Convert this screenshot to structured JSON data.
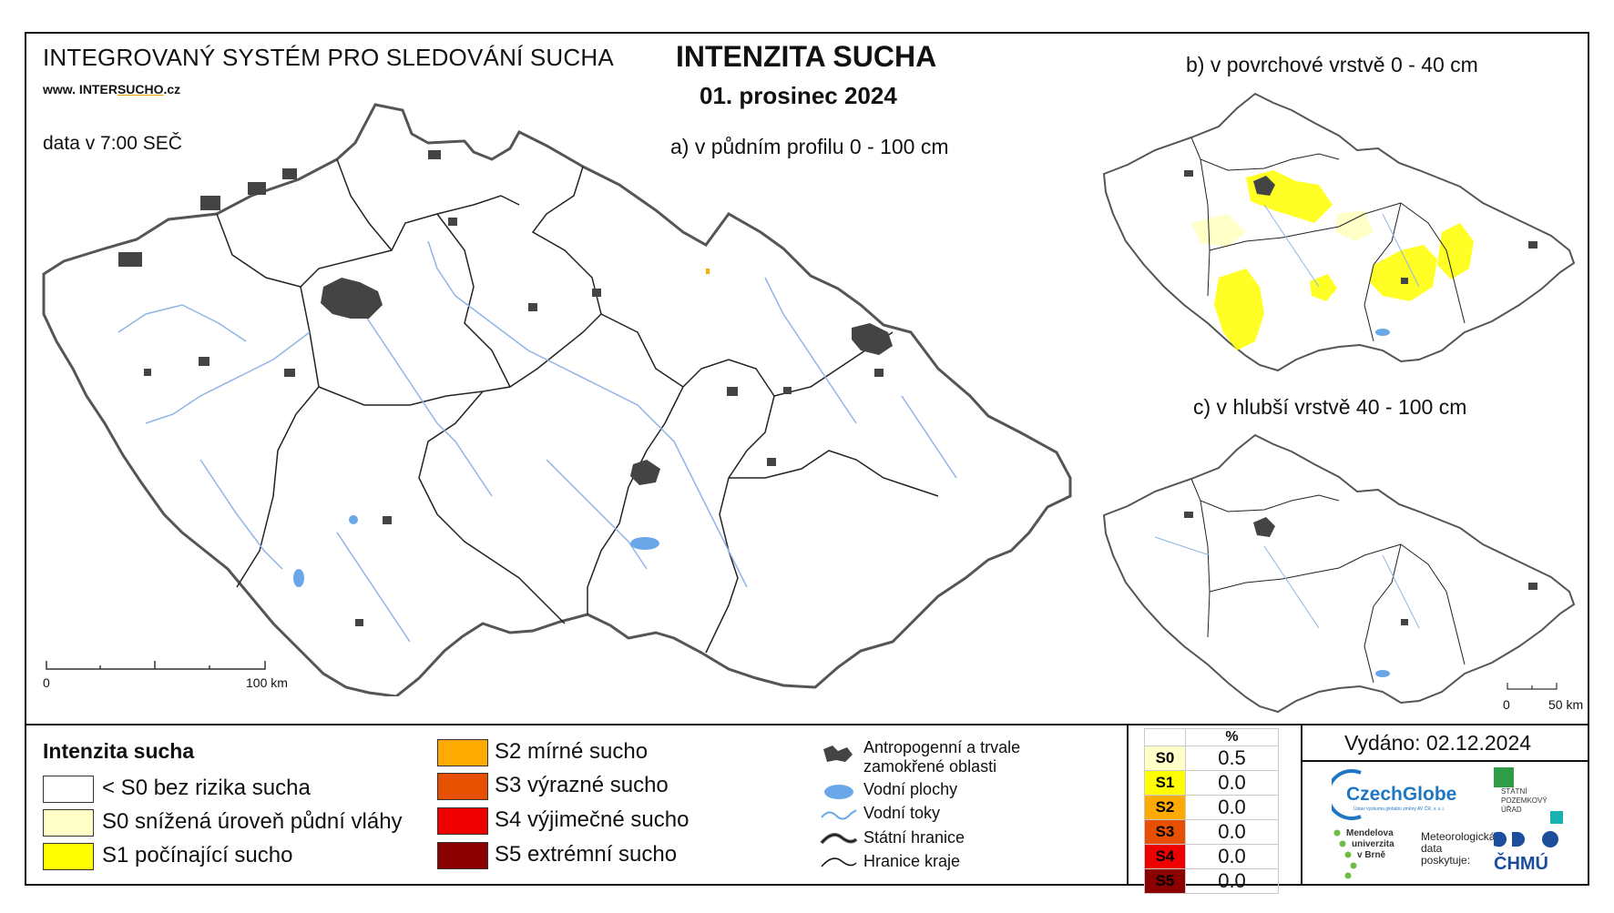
{
  "header": {
    "system_title": "INTEGROVANÝ SYSTÉM PRO SLEDOVÁNÍ SUCHA",
    "url_prefix": "www. INTER",
    "url_mid": "SUCHO",
    "url_suffix": ".cz",
    "data_time": "data v 7:00 SEČ",
    "main_title": "INTENZITA SUCHA",
    "date": "01. prosinec 2024"
  },
  "maps": {
    "a_label": "a) v půdním profilu 0 - 100 cm",
    "b_label": "b) v povrchové vrstvě 0 - 40 cm",
    "c_label": "c) v hlubší vrstvě 40 - 100 cm",
    "scale_main": {
      "start": "0",
      "end": "100 km"
    },
    "scale_small": {
      "start": "0",
      "end": "50 km"
    }
  },
  "legend": {
    "title": "Intenzita sucha",
    "classes": [
      {
        "label": "< S0 bez rizika sucha",
        "color": "#ffffff"
      },
      {
        "label": "S0 snížená úroveň půdní vláhy",
        "color": "#ffffc8"
      },
      {
        "label": "S1 počínající sucho",
        "color": "#ffff00"
      },
      {
        "label": "S2 mírné sucho",
        "color": "#ffaa00"
      },
      {
        "label": "S3 výrazné sucho",
        "color": "#e65000"
      },
      {
        "label": "S4 výjimečné sucho",
        "color": "#ee0000"
      },
      {
        "label": "S5 extrémní sucho",
        "color": "#8b0000"
      }
    ],
    "symbols": [
      {
        "label": "Antropogenní a trvale zamokřené oblasti",
        "icon": "urban-area-icon"
      },
      {
        "label": "Vodní plochy",
        "icon": "water-body-icon"
      },
      {
        "label": "Vodní toky",
        "icon": "river-icon"
      },
      {
        "label": "Státní hranice",
        "icon": "state-border-icon"
      },
      {
        "label": "Hranice kraje",
        "icon": "region-border-icon"
      }
    ]
  },
  "percent_table": {
    "header": "%",
    "rows": [
      {
        "code": "S0",
        "value": "0.5",
        "color": "#ffffc8",
        "text_color": "#000000"
      },
      {
        "code": "S1",
        "value": "0.0",
        "color": "#ffff00",
        "text_color": "#000000"
      },
      {
        "code": "S2",
        "value": "0.0",
        "color": "#ffaa00",
        "text_color": "#000000"
      },
      {
        "code": "S3",
        "value": "0.0",
        "color": "#e65000",
        "text_color": "#000000"
      },
      {
        "code": "S4",
        "value": "0.0",
        "color": "#ee0000",
        "text_color": "#000000"
      },
      {
        "code": "S5",
        "value": "0.0",
        "color": "#8b0000",
        "text_color": "#000000"
      }
    ]
  },
  "footer": {
    "issued": "Vydáno: 02.12.2024",
    "logos": {
      "czechglobe": "CzechGlobe",
      "czechglobe_sub": "Ústav výzkumu globální změny AV ČR, v. v. i.",
      "spu_lines": [
        "STÁTNÍ",
        "POZEMKOVÝ",
        "ÚŘAD"
      ],
      "mendel_lines": [
        "Mendelova",
        "univerzita",
        "v Brně"
      ],
      "meteo_lines": [
        "Meteorologická",
        "data",
        "poskytuje:"
      ],
      "chmu": "ČHMÚ"
    }
  }
}
